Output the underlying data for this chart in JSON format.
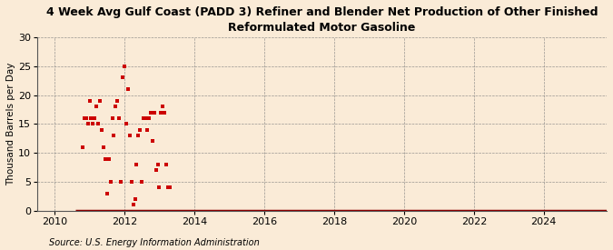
{
  "title": "4 Week Avg Gulf Coast (PADD 3) Refiner and Blender Net Production of Other Finished\nReformulated Motor Gasoline",
  "ylabel": "Thousand Barrels per Day",
  "source": "Source: U.S. Energy Information Administration",
  "background_color": "#faebd7",
  "plot_bg_color": "#faebd7",
  "marker_color": "#cc0000",
  "line_color": "#8b0000",
  "xlim": [
    2009.5,
    2025.8
  ],
  "ylim": [
    0,
    30
  ],
  "yticks": [
    0,
    5,
    10,
    15,
    20,
    25,
    30
  ],
  "xticks": [
    2010,
    2012,
    2014,
    2016,
    2018,
    2020,
    2022,
    2024
  ],
  "scatter_x": [
    2010.8,
    2010.85,
    2010.9,
    2010.95,
    2011.0,
    2011.05,
    2011.1,
    2011.15,
    2011.2,
    2011.25,
    2011.3,
    2011.35,
    2011.4,
    2011.45,
    2011.5,
    2011.55,
    2011.6,
    2011.65,
    2011.7,
    2011.75,
    2011.8,
    2011.85,
    2011.9,
    2011.95,
    2012.0,
    2012.05,
    2012.1,
    2012.15,
    2012.2,
    2012.25,
    2012.3,
    2012.35,
    2012.4,
    2012.45,
    2012.5,
    2012.55,
    2012.6,
    2012.65,
    2012.7,
    2012.75,
    2012.8,
    2012.85,
    2012.9,
    2012.95,
    2013.0,
    2013.05,
    2013.1,
    2013.15,
    2013.2,
    2013.25,
    2013.3
  ],
  "scatter_y": [
    11,
    16,
    16,
    15,
    19,
    16,
    15,
    16,
    18,
    15,
    19,
    14,
    11,
    9,
    3,
    9,
    5,
    16,
    13,
    18,
    19,
    16,
    5,
    23,
    25,
    15,
    21,
    13,
    5,
    1,
    2,
    8,
    13,
    14,
    5,
    16,
    16,
    14,
    16,
    17,
    12,
    17,
    7,
    8,
    4,
    17,
    18,
    17,
    8,
    4,
    4
  ],
  "title_fontsize": 9,
  "tick_fontsize": 8,
  "ylabel_fontsize": 7.5,
  "source_fontsize": 7
}
